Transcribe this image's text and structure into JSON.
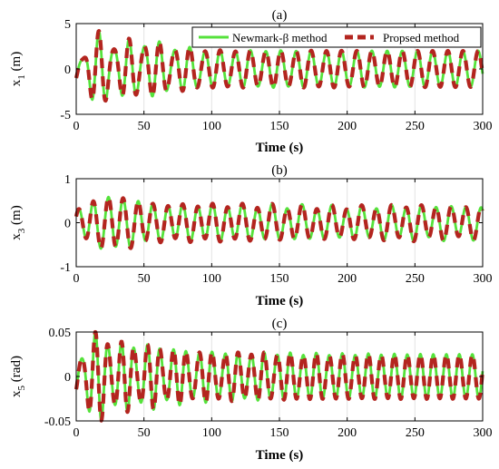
{
  "figure": {
    "legend": {
      "entries": [
        {
          "label": "Newmark-β method",
          "color": "#55e23b",
          "style": "solid"
        },
        {
          "label": "Propsed method",
          "color": "#b3251f",
          "style": "dashed"
        }
      ],
      "placement": "top-right of panel (a)"
    }
  },
  "chart_data": [
    {
      "type": "line",
      "title": "(a)",
      "xlabel": "Time (s)",
      "ylabel": "x",
      "ylabel_sub": "1",
      "ylabel_unit": " (m)",
      "xlim": [
        0,
        300
      ],
      "ylim": [
        -5,
        5
      ],
      "xticks": [
        0,
        50,
        100,
        150,
        200,
        250,
        300
      ],
      "xtick_labels": [
        "0",
        "50",
        "100",
        "150",
        "200",
        "250",
        "300"
      ],
      "yticks": [
        -5,
        0,
        5
      ],
      "ytick_labels": [
        "-5",
        "0",
        "5"
      ],
      "grid": "vertical",
      "signal": {
        "description": "oscillation, period ≈ 11 s, transient growth then steady amplitude",
        "period": 11.2,
        "phase": -1.5,
        "envelope": [
          [
            0,
            1.0
          ],
          [
            12,
            3.2
          ],
          [
            20,
            3.4
          ],
          [
            35,
            2.6
          ],
          [
            50,
            3.0
          ],
          [
            70,
            2.4
          ],
          [
            100,
            2.0
          ],
          [
            150,
            2.0
          ],
          [
            200,
            2.0
          ],
          [
            250,
            2.0
          ],
          [
            300,
            2.0
          ]
        ],
        "second_period": 7.4,
        "second_envelope": [
          [
            0,
            0.8
          ],
          [
            20,
            0.9
          ],
          [
            60,
            0.4
          ],
          [
            100,
            0.1
          ],
          [
            300,
            0.0
          ]
        ]
      },
      "series": [
        {
          "name": "Newmark-β method"
        },
        {
          "name": "Propsed method"
        }
      ]
    },
    {
      "type": "line",
      "title": "(b)",
      "xlabel": "Time (s)",
      "ylabel": "x",
      "ylabel_sub": "3",
      "ylabel_unit": " (m)",
      "xlim": [
        0,
        300
      ],
      "ylim": [
        -1,
        1
      ],
      "xticks": [
        0,
        50,
        100,
        150,
        200,
        250,
        300
      ],
      "xtick_labels": [
        "0",
        "50",
        "100",
        "150",
        "200",
        "250",
        "300"
      ],
      "yticks": [
        -1,
        0,
        1
      ],
      "ytick_labels": [
        "-1",
        "0",
        "1"
      ],
      "grid": "vertical",
      "signal": {
        "description": "oscillation, period ≈ 11 s",
        "period": 11.0,
        "phase": 0.6,
        "envelope": [
          [
            0,
            0.25
          ],
          [
            12,
            0.5
          ],
          [
            28,
            0.6
          ],
          [
            45,
            0.5
          ],
          [
            60,
            0.4
          ],
          [
            100,
            0.4
          ],
          [
            150,
            0.38
          ],
          [
            200,
            0.35
          ],
          [
            250,
            0.38
          ],
          [
            300,
            0.35
          ]
        ],
        "second_period": 23.0,
        "second_envelope": [
          [
            0,
            0.05
          ],
          [
            300,
            0.05
          ]
        ]
      },
      "series": [
        {
          "name": "Newmark-β method"
        },
        {
          "name": "Propsed method"
        }
      ]
    },
    {
      "type": "line",
      "title": "(c)",
      "xlabel": "Time (s)",
      "ylabel": "x",
      "ylabel_sub": "5",
      "ylabel_unit": " (rad)",
      "xlim": [
        0,
        300
      ],
      "ylim": [
        -0.05,
        0.05
      ],
      "xticks": [
        0,
        50,
        100,
        150,
        200,
        250,
        300
      ],
      "xtick_labels": [
        "0",
        "50",
        "100",
        "150",
        "200",
        "250",
        "300"
      ],
      "yticks": [
        -0.05,
        0,
        0.05
      ],
      "ytick_labels": [
        "-0.05",
        "0",
        "0.05"
      ],
      "grid": "vertical",
      "signal": {
        "description": "oscillation, period ≈ 9.5 s",
        "period": 9.6,
        "phase": -1.3,
        "envelope": [
          [
            0,
            0.015
          ],
          [
            10,
            0.043
          ],
          [
            18,
            0.045
          ],
          [
            30,
            0.035
          ],
          [
            50,
            0.034
          ],
          [
            80,
            0.028
          ],
          [
            120,
            0.026
          ],
          [
            200,
            0.025
          ],
          [
            300,
            0.025
          ]
        ],
        "second_period": 6.5,
        "second_envelope": [
          [
            0,
            0.008
          ],
          [
            40,
            0.006
          ],
          [
            100,
            0.002
          ],
          [
            300,
            0.0
          ]
        ]
      },
      "series": [
        {
          "name": "Newmark-β method"
        },
        {
          "name": "Propsed method"
        }
      ]
    }
  ]
}
